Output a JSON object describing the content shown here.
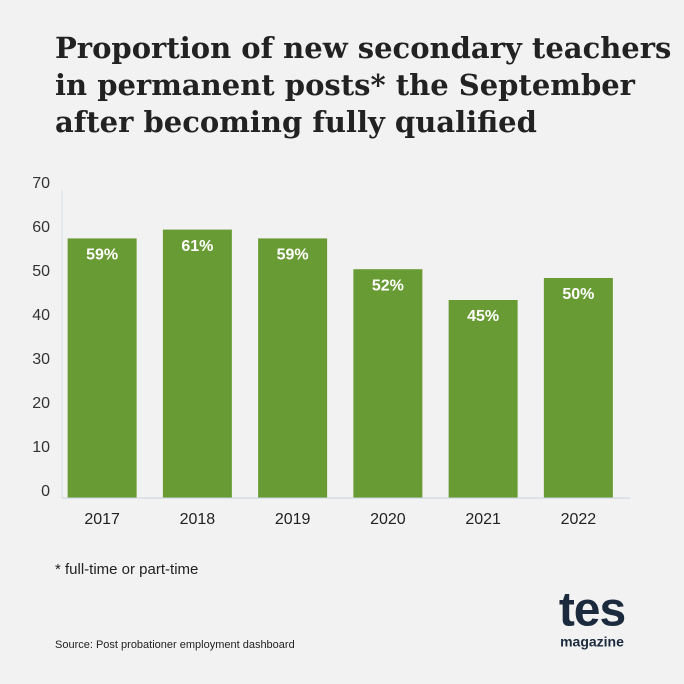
{
  "chart_data": {
    "type": "bar",
    "title": [
      "Proportion of new secondary teachers",
      "in permanent posts* the September",
      "after becoming fully qualified"
    ],
    "categories": [
      "2017",
      "2018",
      "2019",
      "2020",
      "2021",
      "2022"
    ],
    "values": [
      59,
      61,
      59,
      52,
      45,
      50
    ],
    "value_labels": [
      "59%",
      "61%",
      "59%",
      "52%",
      "45%",
      "50%"
    ],
    "color": "#699b34",
    "ylim": [
      0,
      70
    ],
    "yticks": [
      0,
      10,
      20,
      30,
      40,
      50,
      60,
      70
    ],
    "grid": false,
    "footnote": "* full-time or part-time",
    "source": "Source: Post probationer employment dashboard",
    "logo": {
      "main": "tes",
      "sub": "magazine"
    }
  }
}
